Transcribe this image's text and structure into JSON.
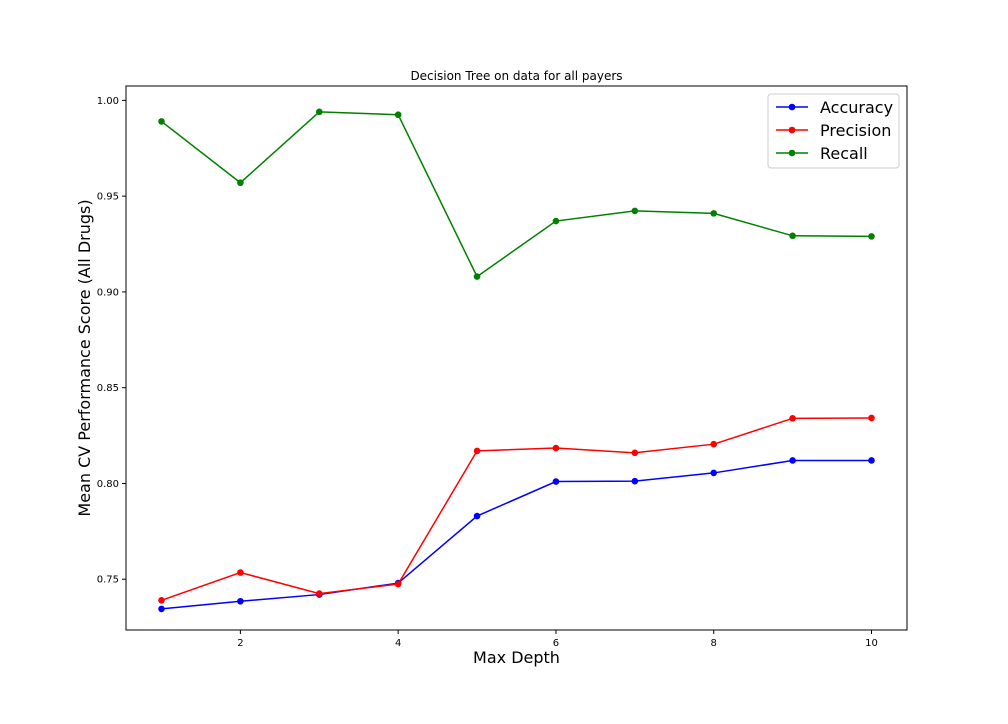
{
  "chart_data": {
    "type": "line",
    "title": "Decision Tree on data for all payers",
    "xlabel": "Max Depth",
    "ylabel": "Mean CV Performance Score (All Drugs)",
    "x": [
      1,
      2,
      3,
      4,
      5,
      6,
      7,
      8,
      9,
      10
    ],
    "xlim": [
      0.55,
      10.45
    ],
    "ylim": [
      0.7235,
      1.0075
    ],
    "xticks": [
      2,
      4,
      6,
      8,
      10
    ],
    "yticks": [
      0.75,
      0.8,
      0.85,
      0.9,
      0.95,
      1.0
    ],
    "grid": false,
    "legend_position": "top-right",
    "series": [
      {
        "name": "Accuracy",
        "color": "#0000ff",
        "values": [
          0.7345,
          0.7385,
          0.742,
          0.748,
          0.783,
          0.801,
          0.8012,
          0.8055,
          0.812,
          0.812
        ]
      },
      {
        "name": "Precision",
        "color": "#ff0000",
        "values": [
          0.739,
          0.7535,
          0.7425,
          0.7475,
          0.817,
          0.8185,
          0.816,
          0.8205,
          0.834,
          0.8342
        ]
      },
      {
        "name": "Recall",
        "color": "#008000",
        "values": [
          0.989,
          0.957,
          0.994,
          0.9925,
          0.908,
          0.937,
          0.9423,
          0.941,
          0.9293,
          0.929
        ]
      }
    ]
  }
}
